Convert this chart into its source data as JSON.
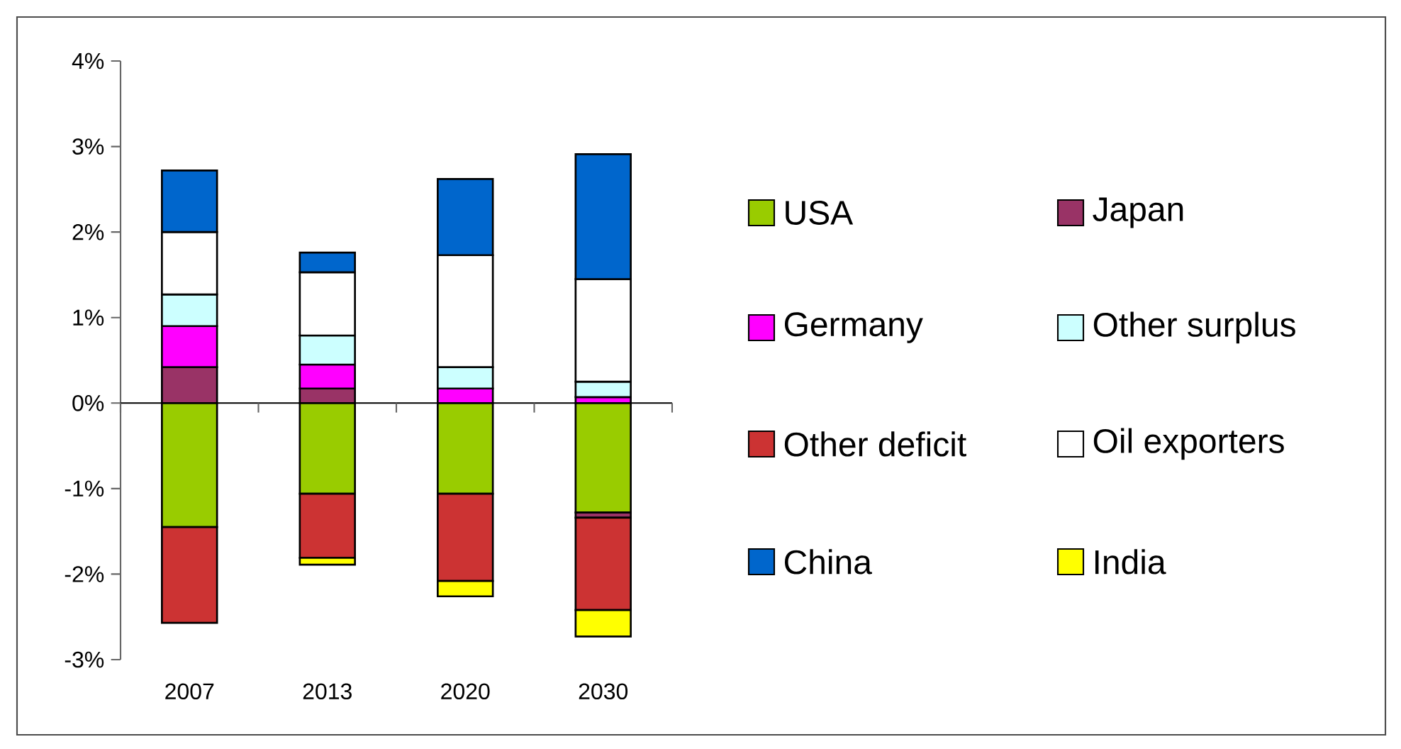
{
  "chart_data": {
    "type": "bar",
    "stacked": true,
    "categories": [
      "2007",
      "2013",
      "2020",
      "2030"
    ],
    "series": [
      {
        "name": "USA",
        "color": "#99cc00",
        "values": [
          -1.45,
          -1.06,
          -1.06,
          -1.28
        ]
      },
      {
        "name": "Japan",
        "color": "#993366",
        "values": [
          0.42,
          0.17,
          0,
          -0.06
        ]
      },
      {
        "name": "Germany",
        "color": "#ff00ff",
        "values": [
          0.48,
          0.28,
          0.17,
          0.07
        ]
      },
      {
        "name": "Other surplus",
        "color": "#ccffff",
        "values": [
          0.37,
          0.34,
          0.25,
          0.18
        ]
      },
      {
        "name": "Other deficit",
        "color": "#cc3333",
        "values": [
          -1.12,
          -0.75,
          -1.02,
          -1.08
        ]
      },
      {
        "name": "Oil exporters",
        "color": "#ffffff",
        "values": [
          0.73,
          0.74,
          1.31,
          1.2
        ]
      },
      {
        "name": "China",
        "color": "#0066cc",
        "values": [
          0.72,
          0.23,
          0.89,
          1.46
        ]
      },
      {
        "name": "India",
        "color": "#ffff00",
        "values": [
          0,
          -0.08,
          -0.18,
          -0.31
        ]
      }
    ],
    "ylim": [
      -3,
      4
    ],
    "yticks": [
      {
        "value": -3,
        "label": "-3%"
      },
      {
        "value": -2,
        "label": "-2%"
      },
      {
        "value": -1,
        "label": "-1%"
      },
      {
        "value": 0,
        "label": "0%"
      },
      {
        "value": 1,
        "label": "1%"
      },
      {
        "value": 2,
        "label": "2%"
      },
      {
        "value": 3,
        "label": "3%"
      },
      {
        "value": 4,
        "label": "4%"
      }
    ],
    "legend": "right"
  }
}
